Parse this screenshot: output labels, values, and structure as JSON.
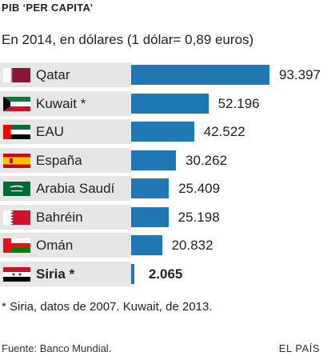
{
  "header": {
    "title": "PIB ‘PER CAPITA’",
    "subtitle": "En 2014, en dólares (1 dólar= 0,89 euros)"
  },
  "chart_data": {
    "type": "bar",
    "orientation": "horizontal",
    "categories": [
      "Qatar",
      "Kuwait *",
      "EAU",
      "España",
      "Arabia Saudí",
      "Bahréin",
      "Omán",
      "Siria *"
    ],
    "values": [
      93397,
      52196,
      42522,
      30262,
      25409,
      25198,
      20832,
      2065
    ],
    "value_labels": [
      "93.397",
      "52.196",
      "42.522",
      "30.262",
      "25.409",
      "25.198",
      "20.832",
      "2.065"
    ],
    "flags": [
      "qatar-flag-icon",
      "kuwait-flag-icon",
      "uae-flag-icon",
      "spain-flag-icon",
      "saudi-arabia-flag-icon",
      "bahrain-flag-icon",
      "oman-flag-icon",
      "syria-flag-icon"
    ],
    "highlight": "Siria *",
    "bar_color": "#1f77b4",
    "label_bg_color": "#e6e6e6",
    "xlim": [
      0,
      100000
    ],
    "grid": false,
    "title": "PIB ‘PER CAPITA’"
  },
  "footnote": "* Siria, datos de 2007. Kuwait, de 2013.",
  "footer": {
    "source": "Fuente: Banco Mundial.",
    "brand": "EL PAÍS"
  }
}
